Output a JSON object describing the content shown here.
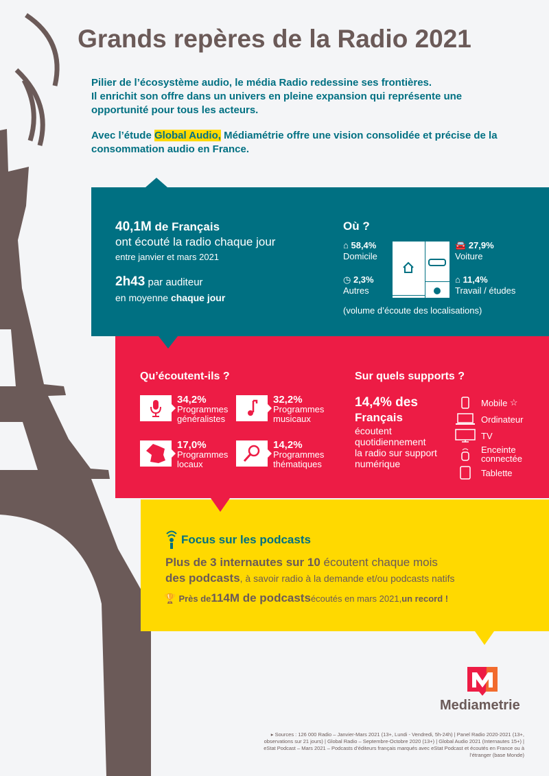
{
  "title": "Grands repères de la Radio 2021",
  "intro": {
    "line1": "Pilier de l’écosystème audio, le média Radio redessine ses frontières.",
    "line2": "Il enrichit son offre dans un univers en pleine expansion qui représente une opportunité pour tous les acteurs.",
    "line3_pre": "Avec l’étude ",
    "line3_hl": "Global Audio,",
    "line3_post": " Médiamétrie offre une vision consolidée et précise de la consommation audio en France."
  },
  "audience": {
    "value": "40,1M",
    "value_suffix": " de Français",
    "line2": "ont écouté la radio chaque jour",
    "line3": "entre janvier et mars 2021",
    "duration": "2h43",
    "duration_suffix": " par auditeur",
    "line5_pre": "en moyenne ",
    "line5_b": "chaque jour"
  },
  "where": {
    "title": "Où ?",
    "items": [
      {
        "value": "58,4%",
        "label": "Domicile",
        "icon": "house-icon"
      },
      {
        "value": "27,9%",
        "label": "Voiture",
        "icon": "car-icon"
      },
      {
        "value": "2,3%",
        "label": "Autres",
        "icon": "person-clock-icon"
      },
      {
        "value": "11,4%",
        "label": "Travail / études",
        "icon": "group-icon"
      }
    ],
    "note": "(volume d’écoute des localisations)"
  },
  "what": {
    "title": "Qu’écoutent-ils ?",
    "items": [
      {
        "value": "34,2%",
        "l1": "Programmes",
        "l2": "généralistes",
        "icon": "microphone-icon"
      },
      {
        "value": "32,2%",
        "l1": "Programmes",
        "l2": "musicaux",
        "icon": "music-note-icon"
      },
      {
        "value": "17,0%",
        "l1": "Programmes",
        "l2": "locaux",
        "icon": "france-map-icon"
      },
      {
        "value": "14,2%",
        "l1": "Programmes",
        "l2": "thématiques",
        "icon": "magnifier-icon"
      }
    ]
  },
  "supports": {
    "title": "Sur quels supports ?",
    "big1": "14,4% des",
    "big2": "Français",
    "desc": [
      "écoutent",
      "quotidiennement",
      "la radio sur support",
      "numérique"
    ],
    "devices": [
      {
        "label": "Mobile",
        "icon": "mobile-icon"
      },
      {
        "label": "Ordinateur",
        "icon": "laptop-icon"
      },
      {
        "label": "TV",
        "icon": "tv-icon"
      },
      {
        "label": "Enceinte connectée",
        "icon": "smart-speaker-icon"
      },
      {
        "label": "Tablette",
        "icon": "tablet-icon"
      }
    ]
  },
  "podcasts": {
    "title": "Focus sur les podcasts",
    "p1_b": "Plus de 3 internautes sur 10",
    "p1": " écoutent chaque mois",
    "p2_b": "des podcasts",
    "p2": ", à savoir radio à la demande et/ou podcasts natifs",
    "p3_b1": "Près de ",
    "p3_big": "114M de podcasts",
    "p3": " écoutés en mars 2021, ",
    "p3_b2": "un record !"
  },
  "logo": "Mediametrie",
  "sources": "Sources : 126 000 Radio – Janvier-Mars 2021 (13+, Lundi - Vendredi, 5h-24h) | Panel Radio 2020-2021 (13+, observations sur 21 jours) | Global Radio – Septembre-Octobre 2020 (13+) | Global Audio 2021 (Internautes 15+) | eStat Podcast – Mars 2021 – Podcasts d’éditeurs français marqués avec eStat Podcast et écoutés en France ou à l’étranger (base Monde)",
  "colors": {
    "teal": "#007082",
    "red": "#ed1c45",
    "yellow": "#ffd900",
    "brown": "#6b5a58",
    "background": "#f4f5f7"
  }
}
